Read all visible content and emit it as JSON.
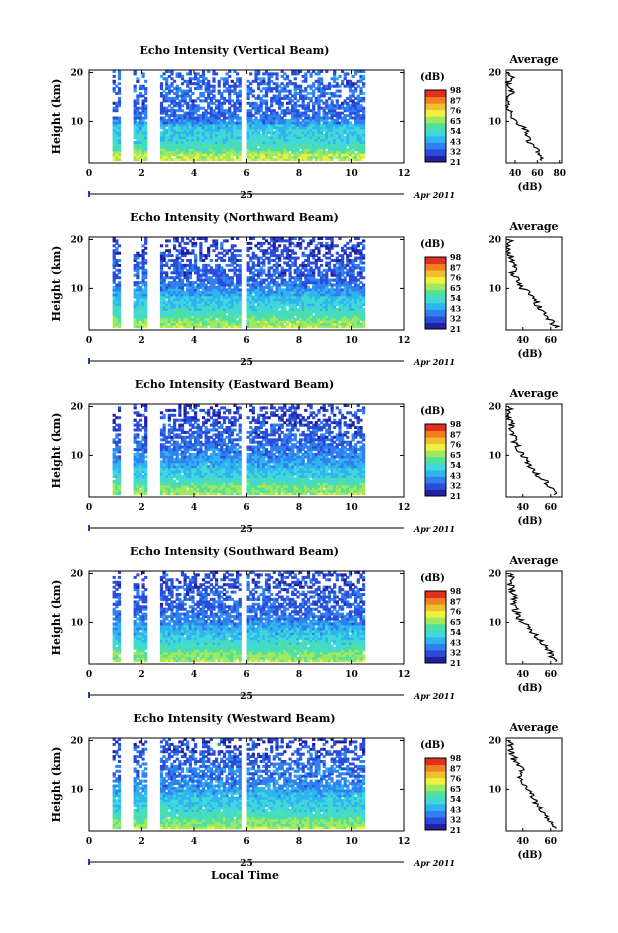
{
  "common": {
    "xlabel": "Local Time",
    "ylabel": "Height (km)",
    "date_day": "25",
    "date_tail": "Apr 2011",
    "xticks": [
      "0",
      "2",
      "4",
      "6",
      "8",
      "10",
      "12"
    ],
    "yticks": [
      "10",
      "20"
    ],
    "cbar_unit": "(dB)",
    "cbar_ticks": [
      "21",
      "32",
      "43",
      "54",
      "65",
      "76",
      "87",
      "98"
    ],
    "avg_title": "Average",
    "avg_xlabel": "(dB)"
  },
  "colors": {
    "scale": [
      "#2020a0",
      "#2a4cd8",
      "#3080f0",
      "#30b4f0",
      "#40d8d8",
      "#50e0a0",
      "#a0e860",
      "#f0f040",
      "#f0c030",
      "#f08020",
      "#e03020"
    ],
    "line": "#000000",
    "gap": "#ffffff"
  },
  "chart_data": [
    {
      "type": "heatmap",
      "title": "Echo Intensity (Vertical Beam)",
      "xlim": [
        0,
        12
      ],
      "ylim": [
        1.5,
        20.5
      ],
      "clim": [
        21,
        98
      ],
      "x_range_data": [
        0.9,
        10.4
      ],
      "data_gaps": [
        [
          1.2,
          1.7
        ],
        [
          2.2,
          2.7
        ],
        [
          5.7,
          5.9
        ]
      ],
      "profile_heights": [
        2,
        3,
        4,
        5,
        6,
        7,
        8,
        9,
        10,
        11,
        12,
        13,
        14,
        15,
        16,
        17,
        18,
        19,
        20
      ],
      "profile_db": [
        65,
        64,
        60,
        56,
        52,
        51,
        50,
        47,
        40,
        36,
        35,
        34,
        33,
        35,
        37,
        35,
        33,
        38,
        34
      ],
      "avg": {
        "xticks": [
          "40",
          "60",
          "80"
        ],
        "xlim": [
          32,
          82
        ],
        "yticks": [
          "10",
          "20"
        ]
      }
    },
    {
      "type": "heatmap",
      "title": "Echo Intensity (Northward Beam)",
      "xlim": [
        0,
        12
      ],
      "ylim": [
        1.5,
        20.5
      ],
      "clim": [
        21,
        98
      ],
      "x_range_data": [
        0.9,
        10.4
      ],
      "data_gaps": [
        [
          1.2,
          1.7
        ],
        [
          2.2,
          2.7
        ],
        [
          5.7,
          5.9
        ]
      ],
      "profile_heights": [
        2,
        3,
        4,
        5,
        6,
        7,
        8,
        9,
        10,
        11,
        12,
        13,
        14,
        15,
        16,
        17,
        18,
        19,
        20
      ],
      "profile_db": [
        64,
        61,
        58,
        56,
        52,
        50,
        48,
        44,
        40,
        37,
        35,
        33,
        34,
        33,
        32,
        31,
        30,
        31,
        30
      ],
      "avg": {
        "xticks": [
          "40",
          "60"
        ],
        "xlim": [
          28,
          68
        ],
        "yticks": [
          "10",
          "20"
        ]
      }
    },
    {
      "type": "heatmap",
      "title": "Echo Intensity (Eastward Beam)",
      "xlim": [
        0,
        12
      ],
      "ylim": [
        1.5,
        20.5
      ],
      "clim": [
        21,
        98
      ],
      "x_range_data": [
        0.9,
        10.4
      ],
      "data_gaps": [
        [
          1.2,
          1.7
        ],
        [
          2.2,
          2.7
        ],
        [
          5.7,
          5.9
        ]
      ],
      "profile_heights": [
        2,
        3,
        4,
        5,
        6,
        7,
        8,
        9,
        10,
        11,
        12,
        13,
        14,
        15,
        16,
        17,
        18,
        19,
        20
      ],
      "profile_db": [
        63,
        60,
        59,
        55,
        50,
        48,
        45,
        42,
        40,
        38,
        36,
        34,
        33,
        33,
        32,
        31,
        30,
        31,
        30
      ],
      "avg": {
        "xticks": [
          "40",
          "60"
        ],
        "xlim": [
          28,
          68
        ],
        "yticks": [
          "10",
          "20"
        ]
      }
    },
    {
      "type": "heatmap",
      "title": "Echo Intensity (Southward Beam)",
      "xlim": [
        0,
        12
      ],
      "ylim": [
        1.5,
        20.5
      ],
      "clim": [
        21,
        98
      ],
      "x_range_data": [
        0.9,
        10.4
      ],
      "data_gaps": [
        [
          1.2,
          1.7
        ],
        [
          2.2,
          2.7
        ],
        [
          5.7,
          5.9
        ]
      ],
      "profile_heights": [
        2,
        3,
        4,
        5,
        6,
        7,
        8,
        9,
        10,
        11,
        12,
        13,
        14,
        15,
        16,
        17,
        18,
        19,
        20
      ],
      "profile_db": [
        64,
        60,
        60,
        56,
        53,
        50,
        47,
        44,
        40,
        37,
        36,
        34,
        33,
        34,
        33,
        32,
        31,
        32,
        30
      ],
      "avg": {
        "xticks": [
          "40",
          "60"
        ],
        "xlim": [
          28,
          68
        ],
        "yticks": [
          "10",
          "20"
        ]
      }
    },
    {
      "type": "heatmap",
      "title": "Echo Intensity (Westward Beam)",
      "xlim": [
        0,
        12
      ],
      "ylim": [
        1.5,
        20.5
      ],
      "clim": [
        21,
        98
      ],
      "x_range_data": [
        0.9,
        10.4
      ],
      "data_gaps": [
        [
          1.2,
          1.7
        ],
        [
          2.2,
          2.7
        ],
        [
          5.7,
          5.9
        ]
      ],
      "profile_heights": [
        2,
        3,
        4,
        5,
        6,
        7,
        8,
        9,
        10,
        11,
        12,
        13,
        14,
        15,
        16,
        17,
        18,
        19,
        20
      ],
      "profile_db": [
        64,
        60,
        59,
        56,
        52,
        50,
        48,
        46,
        42,
        40,
        38,
        37,
        39,
        36,
        34,
        33,
        31,
        32,
        30
      ],
      "avg": {
        "xticks": [
          "40",
          "60"
        ],
        "xlim": [
          28,
          68
        ],
        "yticks": [
          "10",
          "20"
        ]
      }
    }
  ]
}
